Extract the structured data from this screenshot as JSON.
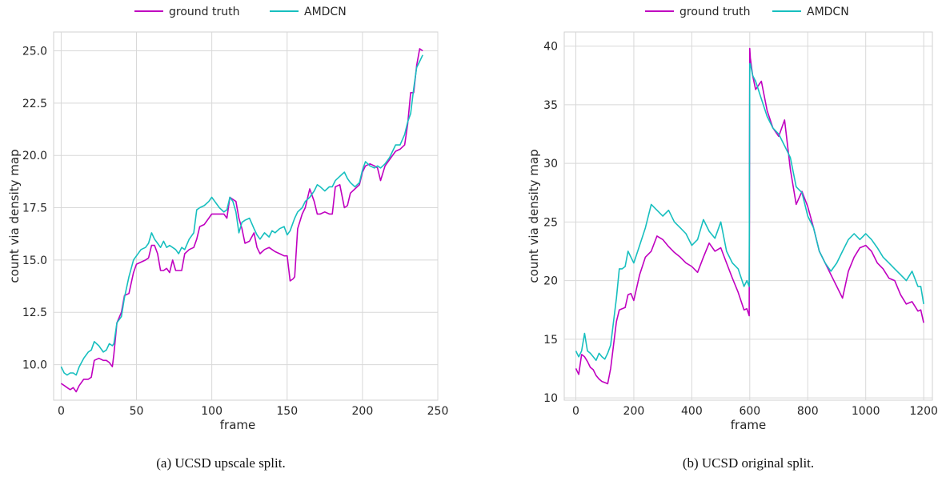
{
  "chart_data": [
    {
      "type": "line",
      "caption": "(a) UCSD upscale split.",
      "xlabel": "frame",
      "ylabel": "count via density map",
      "xlim": [
        -5,
        250
      ],
      "ylim": [
        8.3,
        25.9
      ],
      "xticks": [
        0,
        50,
        100,
        150,
        200,
        250
      ],
      "yticks": [
        10.0,
        12.5,
        15.0,
        17.5,
        20.0,
        22.5,
        25.0
      ],
      "ytick_labels": [
        "10.0",
        "12.5",
        "15.0",
        "17.5",
        "20.0",
        "22.5",
        "25.0"
      ],
      "grid": true,
      "legend": "top-center",
      "series": [
        {
          "name": "ground truth",
          "color": "#c000c0",
          "x": [
            0,
            2,
            4,
            6,
            8,
            10,
            12,
            15,
            18,
            20,
            22,
            25,
            28,
            30,
            32,
            34,
            35,
            37,
            40,
            42,
            45,
            48,
            50,
            53,
            56,
            58,
            60,
            62,
            64,
            66,
            68,
            70,
            72,
            74,
            76,
            78,
            80,
            82,
            85,
            88,
            90,
            92,
            95,
            98,
            100,
            102,
            105,
            108,
            110,
            112,
            114,
            116,
            118,
            120,
            122,
            125,
            128,
            130,
            132,
            135,
            138,
            140,
            142,
            145,
            148,
            150,
            152,
            154,
            155,
            157,
            160,
            162,
            165,
            168,
            170,
            172,
            175,
            178,
            180,
            182,
            185,
            188,
            190,
            192,
            195,
            198,
            200,
            202,
            205,
            208,
            210,
            212,
            215,
            218,
            220,
            222,
            225,
            228,
            230,
            232,
            234,
            236,
            238,
            240
          ],
          "y": [
            9.1,
            9.0,
            8.9,
            8.8,
            8.9,
            8.7,
            9.0,
            9.3,
            9.3,
            9.4,
            10.2,
            10.3,
            10.2,
            10.2,
            10.1,
            9.9,
            10.5,
            12.0,
            12.5,
            13.3,
            13.4,
            14.4,
            14.8,
            14.9,
            15.0,
            15.1,
            15.7,
            15.7,
            15.3,
            14.5,
            14.5,
            14.6,
            14.4,
            15.0,
            14.5,
            14.5,
            14.5,
            15.3,
            15.5,
            15.6,
            16.0,
            16.6,
            16.7,
            17.0,
            17.2,
            17.2,
            17.2,
            17.2,
            17.0,
            18.0,
            17.9,
            17.8,
            17.0,
            16.5,
            15.8,
            15.9,
            16.3,
            15.6,
            15.3,
            15.5,
            15.6,
            15.5,
            15.4,
            15.3,
            15.2,
            15.2,
            14.0,
            14.1,
            14.2,
            16.5,
            17.2,
            17.5,
            18.4,
            17.8,
            17.2,
            17.2,
            17.3,
            17.2,
            17.2,
            18.5,
            18.6,
            17.5,
            17.6,
            18.2,
            18.4,
            18.6,
            19.2,
            19.5,
            19.6,
            19.5,
            19.4,
            18.8,
            19.5,
            19.8,
            20.0,
            20.2,
            20.3,
            20.5,
            21.5,
            23.0,
            23.0,
            24.3,
            25.1,
            25.0
          ]
        },
        {
          "name": "AMDCN",
          "color": "#17bfbf",
          "x": [
            0,
            2,
            4,
            6,
            8,
            10,
            12,
            15,
            18,
            20,
            22,
            25,
            28,
            30,
            32,
            34,
            35,
            37,
            40,
            42,
            45,
            48,
            50,
            53,
            56,
            58,
            60,
            62,
            64,
            66,
            68,
            70,
            72,
            74,
            76,
            78,
            80,
            82,
            85,
            88,
            90,
            92,
            95,
            98,
            100,
            102,
            105,
            108,
            110,
            112,
            114,
            116,
            118,
            120,
            122,
            125,
            128,
            130,
            132,
            135,
            138,
            140,
            142,
            145,
            148,
            150,
            152,
            154,
            155,
            157,
            160,
            162,
            165,
            168,
            170,
            172,
            175,
            178,
            180,
            182,
            185,
            188,
            190,
            192,
            195,
            198,
            200,
            202,
            205,
            208,
            210,
            212,
            215,
            218,
            220,
            222,
            225,
            228,
            230,
            232,
            234,
            236,
            238,
            240
          ],
          "y": [
            9.9,
            9.6,
            9.5,
            9.6,
            9.6,
            9.5,
            9.9,
            10.3,
            10.6,
            10.7,
            11.1,
            10.9,
            10.6,
            10.7,
            11.0,
            10.9,
            11.0,
            12.0,
            12.3,
            13.2,
            14.2,
            15.0,
            15.2,
            15.5,
            15.6,
            15.8,
            16.3,
            16.0,
            15.8,
            15.6,
            15.9,
            15.6,
            15.7,
            15.6,
            15.5,
            15.3,
            15.6,
            15.5,
            16.0,
            16.3,
            17.4,
            17.5,
            17.6,
            17.8,
            18.0,
            17.8,
            17.5,
            17.3,
            17.4,
            18.0,
            17.8,
            17.3,
            16.3,
            16.8,
            16.9,
            17.0,
            16.5,
            16.2,
            16.0,
            16.3,
            16.1,
            16.4,
            16.3,
            16.5,
            16.6,
            16.2,
            16.4,
            16.8,
            17.0,
            17.3,
            17.5,
            17.8,
            18.0,
            18.3,
            18.6,
            18.5,
            18.3,
            18.5,
            18.5,
            18.8,
            19.0,
            19.2,
            18.9,
            18.7,
            18.5,
            18.7,
            19.3,
            19.7,
            19.5,
            19.4,
            19.5,
            19.4,
            19.6,
            19.9,
            20.2,
            20.5,
            20.5,
            21.0,
            21.6,
            22.0,
            23.2,
            24.2,
            24.5,
            24.8
          ]
        }
      ]
    },
    {
      "type": "line",
      "caption": "(b) UCSD original split.",
      "xlabel": "frame",
      "ylabel": "count via density map",
      "xlim": [
        -40,
        1230
      ],
      "ylim": [
        9.8,
        41.2
      ],
      "xticks": [
        0,
        200,
        400,
        600,
        800,
        1000,
        1200
      ],
      "yticks": [
        10,
        15,
        20,
        25,
        30,
        35,
        40
      ],
      "ytick_labels": [
        "10",
        "15",
        "20",
        "25",
        "30",
        "35",
        "40"
      ],
      "grid": true,
      "legend": "top-center",
      "series": [
        {
          "name": "ground truth",
          "color": "#c000c0",
          "x": [
            0,
            10,
            20,
            30,
            40,
            50,
            60,
            70,
            80,
            90,
            100,
            110,
            120,
            130,
            140,
            150,
            160,
            170,
            180,
            190,
            200,
            220,
            240,
            260,
            280,
            300,
            320,
            340,
            360,
            380,
            400,
            420,
            440,
            460,
            480,
            500,
            520,
            540,
            560,
            580,
            590,
            598,
            600,
            602,
            610,
            620,
            640,
            660,
            680,
            700,
            720,
            740,
            760,
            780,
            800,
            820,
            840,
            860,
            880,
            900,
            920,
            940,
            960,
            980,
            1000,
            1020,
            1040,
            1060,
            1080,
            1100,
            1120,
            1140,
            1160,
            1180,
            1190,
            1200
          ],
          "y": [
            12.5,
            12.0,
            13.7,
            13.5,
            13.1,
            12.6,
            12.4,
            11.9,
            11.6,
            11.4,
            11.3,
            11.2,
            12.5,
            14.5,
            16.5,
            17.5,
            17.6,
            17.7,
            18.8,
            18.9,
            18.3,
            20.5,
            22.0,
            22.5,
            23.8,
            23.5,
            22.9,
            22.4,
            22.0,
            21.5,
            21.2,
            20.7,
            22.0,
            23.2,
            22.5,
            22.8,
            21.5,
            20.2,
            19.0,
            17.5,
            17.6,
            17.0,
            39.8,
            39.0,
            37.5,
            36.3,
            37.0,
            34.5,
            33.0,
            32.3,
            33.7,
            29.5,
            26.5,
            27.6,
            26.3,
            24.5,
            22.5,
            21.5,
            20.5,
            19.5,
            18.5,
            20.8,
            22.0,
            22.8,
            23.0,
            22.5,
            21.5,
            21.0,
            20.2,
            20.0,
            18.8,
            18.0,
            18.2,
            17.4,
            17.5,
            16.4
          ]
        },
        {
          "name": "AMDCN",
          "color": "#17bfbf",
          "x": [
            0,
            10,
            20,
            30,
            40,
            50,
            60,
            70,
            80,
            90,
            100,
            110,
            120,
            130,
            140,
            150,
            160,
            170,
            180,
            190,
            200,
            220,
            240,
            260,
            280,
            300,
            320,
            340,
            360,
            380,
            400,
            420,
            440,
            460,
            480,
            500,
            520,
            540,
            560,
            580,
            590,
            598,
            600,
            602,
            610,
            620,
            640,
            660,
            680,
            700,
            720,
            740,
            760,
            780,
            800,
            820,
            840,
            860,
            880,
            900,
            920,
            940,
            960,
            980,
            1000,
            1020,
            1040,
            1060,
            1080,
            1100,
            1120,
            1140,
            1160,
            1180,
            1190,
            1200
          ],
          "y": [
            14.0,
            13.5,
            14.0,
            15.5,
            14.0,
            13.8,
            13.5,
            13.2,
            13.8,
            13.5,
            13.3,
            13.8,
            14.5,
            16.5,
            18.5,
            21.0,
            21.0,
            21.2,
            22.5,
            22.0,
            21.5,
            23.0,
            24.5,
            26.5,
            26.0,
            25.5,
            26.0,
            25.0,
            24.5,
            24.0,
            23.0,
            23.5,
            25.2,
            24.2,
            23.6,
            25.0,
            22.5,
            21.5,
            21.0,
            19.5,
            20.0,
            19.5,
            38.5,
            38.5,
            37.5,
            37.0,
            35.5,
            34.0,
            33.0,
            32.5,
            31.5,
            30.5,
            28.0,
            27.5,
            25.5,
            24.5,
            22.5,
            21.5,
            20.8,
            21.5,
            22.5,
            23.5,
            24.0,
            23.5,
            24.0,
            23.5,
            22.8,
            22.0,
            21.5,
            21.0,
            20.5,
            20.0,
            20.8,
            19.5,
            19.5,
            18.0
          ]
        }
      ]
    }
  ]
}
